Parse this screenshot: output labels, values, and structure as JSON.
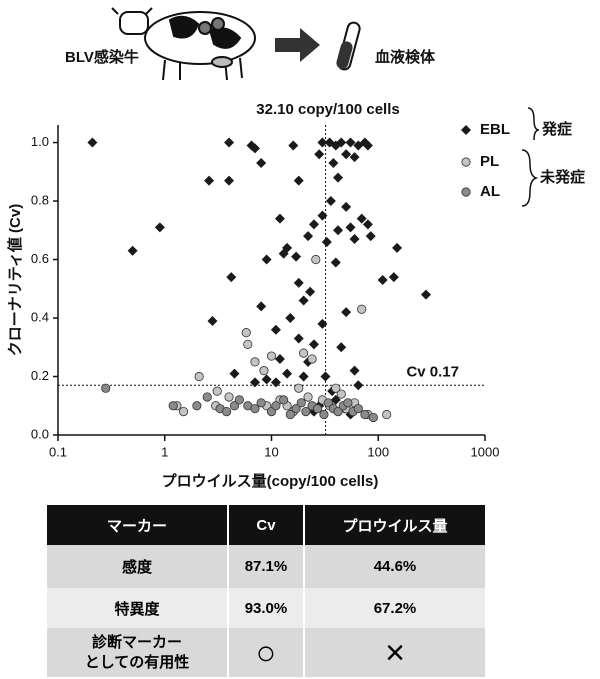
{
  "header": {
    "source": "BLV感染牛",
    "target": "血液検体"
  },
  "chart_data": {
    "type": "scatter",
    "title": "32.10 copy/100 cells",
    "xlabel": "プロウイルス量(copy/100 cells)",
    "ylabel": "クローナリティ値 (Cv)",
    "xscale": "log",
    "xlim": [
      0.1,
      1000
    ],
    "ylim": [
      0,
      1.06
    ],
    "xticks": [
      0.1,
      1,
      10,
      100,
      1000
    ],
    "yticks": [
      {
        "value": 0,
        "label": "0.0"
      },
      0.2,
      0.4,
      0.6,
      0.8,
      {
        "value": 1,
        "label": "1.0"
      }
    ],
    "vline": 32.1,
    "hline": 0.17,
    "hline_label": "Cv 0.17",
    "legend_groups": [
      "発症",
      "未発症"
    ],
    "series": [
      {
        "name": "EBL",
        "marker": "diamond",
        "color": "#1a1a1a",
        "x": [
          0.21,
          4,
          6.5,
          7,
          16,
          30,
          35,
          40,
          45,
          55,
          65,
          75,
          80,
          2.6,
          4,
          8,
          18,
          28,
          50,
          38,
          60,
          42,
          0.5,
          0.9,
          2.8,
          4.2,
          9,
          12,
          13,
          14,
          17,
          18,
          22,
          23,
          25,
          30,
          33,
          36,
          40,
          42,
          50,
          55,
          60,
          70,
          80,
          85,
          110,
          140,
          150,
          280,
          8,
          11,
          15,
          18,
          20,
          25,
          30,
          45,
          50,
          60,
          12,
          14,
          11,
          9,
          20,
          22,
          32,
          37,
          40,
          25,
          28,
          48,
          55,
          65,
          4.5,
          7
        ],
        "y": [
          1.0,
          1.0,
          0.99,
          0.98,
          0.99,
          1.0,
          1.0,
          0.99,
          1.0,
          1.0,
          0.99,
          1.0,
          0.99,
          0.87,
          0.87,
          0.93,
          0.87,
          0.96,
          0.96,
          0.93,
          0.95,
          0.88,
          0.63,
          0.71,
          0.39,
          0.54,
          0.6,
          0.74,
          0.62,
          0.64,
          0.61,
          0.52,
          0.68,
          0.49,
          0.72,
          0.75,
          0.66,
          0.8,
          0.59,
          0.7,
          0.78,
          0.71,
          0.67,
          0.74,
          0.72,
          0.68,
          0.53,
          0.54,
          0.64,
          0.48,
          0.44,
          0.36,
          0.4,
          0.33,
          0.46,
          0.31,
          0.38,
          0.3,
          0.42,
          0.22,
          0.26,
          0.21,
          0.18,
          0.19,
          0.2,
          0.25,
          0.2,
          0.15,
          0.12,
          0.08,
          0.1,
          0.09,
          0.07,
          0.17,
          0.21,
          0.18
        ]
      },
      {
        "name": "PL",
        "marker": "circle",
        "color": "#c4c4c4",
        "x": [
          2.1,
          3.1,
          4,
          5.8,
          6,
          7,
          8.5,
          10,
          12,
          14,
          18,
          20,
          24,
          26,
          30,
          35,
          45,
          50,
          70,
          80,
          120,
          1.3,
          1.5,
          3,
          9,
          16,
          22,
          40,
          60
        ],
        "y": [
          0.2,
          0.15,
          0.13,
          0.35,
          0.31,
          0.25,
          0.22,
          0.27,
          0.12,
          0.1,
          0.16,
          0.28,
          0.26,
          0.6,
          0.12,
          0.1,
          0.14,
          0.09,
          0.43,
          0.07,
          0.07,
          0.1,
          0.08,
          0.1,
          0.1,
          0.08,
          0.13,
          0.16,
          0.11
        ]
      },
      {
        "name": "AL",
        "marker": "circle",
        "color": "#8a8a8a",
        "x": [
          0.28,
          1.2,
          2,
          2.5,
          3.3,
          3.8,
          4.5,
          5,
          6,
          7,
          8,
          10,
          11,
          13,
          15,
          17,
          19,
          21,
          24,
          27,
          31,
          34,
          38,
          42,
          47,
          52,
          58,
          65,
          75,
          90
        ],
        "y": [
          0.16,
          0.1,
          0.1,
          0.13,
          0.09,
          0.08,
          0.1,
          0.12,
          0.1,
          0.09,
          0.11,
          0.08,
          0.1,
          0.12,
          0.07,
          0.09,
          0.11,
          0.08,
          0.1,
          0.09,
          0.07,
          0.11,
          0.09,
          0.08,
          0.1,
          0.11,
          0.08,
          0.09,
          0.07,
          0.06
        ]
      }
    ]
  },
  "table": {
    "header": [
      "マーカー",
      "Cv",
      "プロウイルス量"
    ],
    "rows": [
      [
        "感度",
        "87.1%",
        "44.6%"
      ],
      [
        "特異度",
        "93.0%",
        "67.2%"
      ],
      [
        "診断マーカー\nとしての有用性",
        "○",
        "×"
      ]
    ]
  }
}
